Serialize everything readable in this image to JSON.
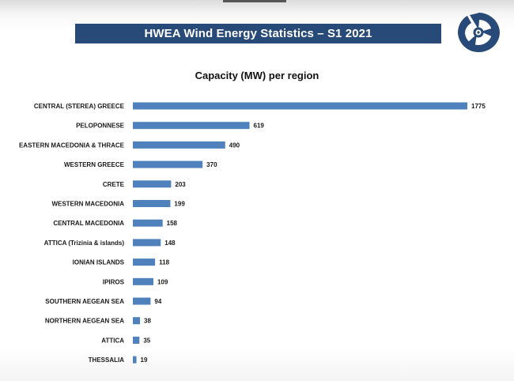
{
  "header": {
    "banner_title": "HWEA Wind Energy Statistics – S1 2021"
  },
  "logo": {
    "icon": "hwea-wind-turbine-logo-icon",
    "color": "#284a78"
  },
  "colors": {
    "banner": "#284a78",
    "bar": "#4f81bd"
  },
  "chart_data": {
    "type": "bar",
    "orientation": "horizontal",
    "title": "Capacity (MW) per region",
    "categories": [
      "CENTRAL (STEREA) GREECE",
      "PELOPONNESE",
      "EASTERN MACEDONIA & THRACE",
      "WESTERN GREECE",
      "CRETE",
      "WESTERN MACEDONIA",
      "CENTRAL MACEDONIA",
      "ATTICA (Trizinia & islands)",
      "IONIAN ISLANDS",
      "IPIROS",
      "SOUTHERN AEGEAN SEA",
      "NORTHERN AEGEAN SEA",
      "ATTICA",
      "THESSALIA"
    ],
    "values": [
      1775,
      619,
      490,
      370,
      203,
      199,
      158,
      148,
      118,
      109,
      94,
      38,
      35,
      19
    ],
    "xlabel": "",
    "ylabel": "",
    "xlim": [
      0,
      1775
    ],
    "grid": false,
    "data_labels": true
  }
}
